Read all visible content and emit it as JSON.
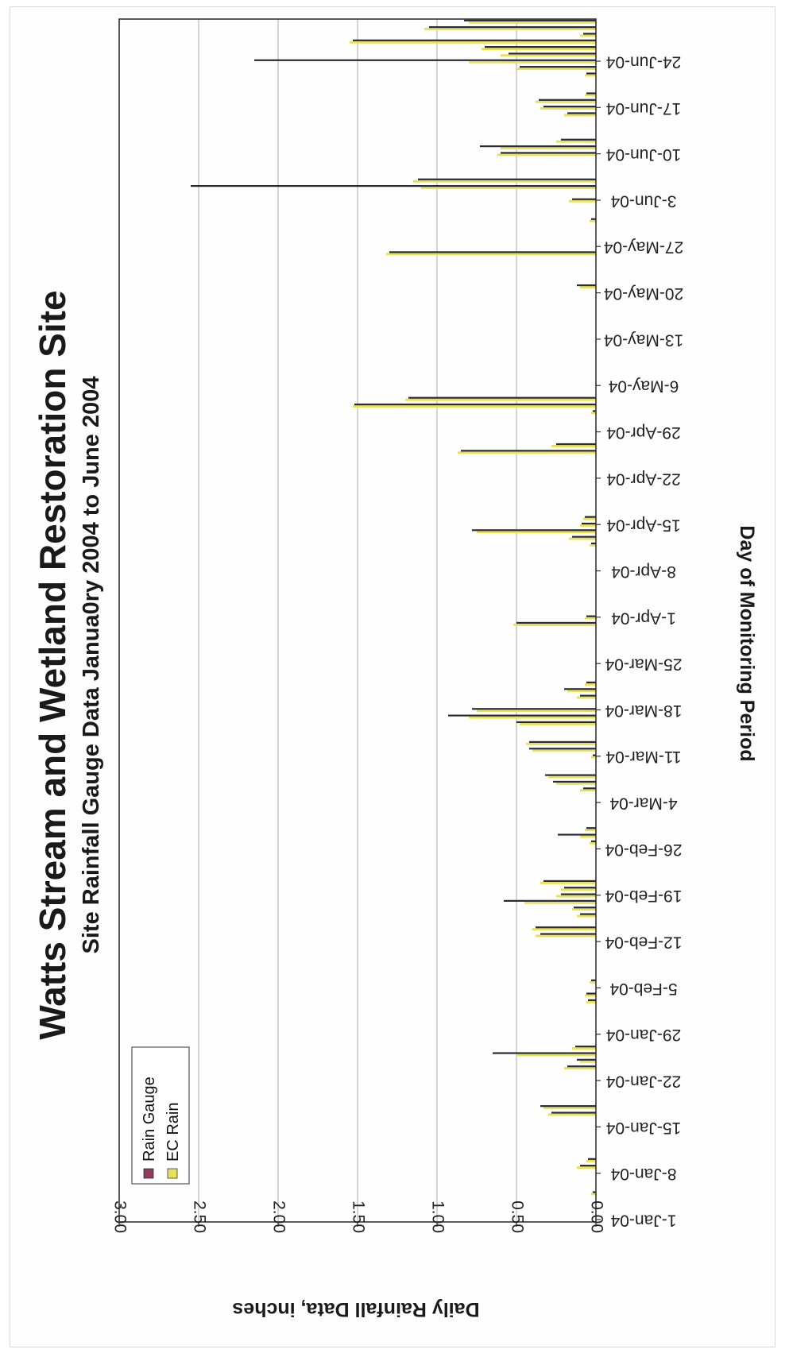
{
  "chart_data": {
    "type": "bar",
    "title": "Watts Stream and Wetland Restoration Site",
    "subtitle": "Site Rainfall Gauge Data Janua0ry 2004 to June 2004",
    "xlabel": "Day of Monitoring Period",
    "ylabel": "Daily Rainfall Data, inches",
    "ylim": [
      0,
      3.0
    ],
    "y_ticks": [
      "0.00",
      "0.50",
      "1.00",
      "1.50",
      "2.00",
      "2.50",
      "3.00"
    ],
    "x_tick_labels": [
      "1-Jan-04",
      "8-Jan-04",
      "15-Jan-04",
      "22-Jan-04",
      "29-Jan-04",
      "5-Feb-04",
      "12-Feb-04",
      "19-Feb-04",
      "26-Feb-04",
      "4-Mar-04",
      "11-Mar-04",
      "18-Mar-04",
      "25-Mar-04",
      "1-Apr-04",
      "8-Apr-04",
      "15-Apr-04",
      "22-Apr-04",
      "29-Apr-04",
      "6-May-04",
      "13-May-04",
      "20-May-04",
      "27-May-04",
      "3-Jun-04",
      "10-Jun-04",
      "17-Jun-04",
      "24-Jun-04"
    ],
    "x_start": "2004-01-01",
    "x_end": "2004-06-30",
    "grid": true,
    "legend_position": "top-left",
    "colors": {
      "rain_gauge": "#2b2b36",
      "ec_rain": "#e8e25a",
      "grid": "#b8b8b8"
    },
    "series": [
      {
        "name": "Rain Gauge",
        "points": [
          [
            "2004-01-05",
            0.02
          ],
          [
            "2004-01-09",
            0.1
          ],
          [
            "2004-01-10",
            0.05
          ],
          [
            "2004-01-17",
            0.28
          ],
          [
            "2004-01-18",
            0.35
          ],
          [
            "2004-01-24",
            0.18
          ],
          [
            "2004-01-25",
            0.12
          ],
          [
            "2004-01-26",
            0.65
          ],
          [
            "2004-01-27",
            0.13
          ],
          [
            "2004-02-03",
            0.05
          ],
          [
            "2004-02-04",
            0.06
          ],
          [
            "2004-02-06",
            0.03
          ],
          [
            "2004-02-13",
            0.35
          ],
          [
            "2004-02-14",
            0.38
          ],
          [
            "2004-02-16",
            0.1
          ],
          [
            "2004-02-17",
            0.14
          ],
          [
            "2004-02-18",
            0.58
          ],
          [
            "2004-02-19",
            0.22
          ],
          [
            "2004-02-20",
            0.2
          ],
          [
            "2004-02-21",
            0.33
          ],
          [
            "2004-02-27",
            0.03
          ],
          [
            "2004-02-28",
            0.24
          ],
          [
            "2004-02-29",
            0.06
          ],
          [
            "2004-03-06",
            0.08
          ],
          [
            "2004-03-07",
            0.27
          ],
          [
            "2004-03-08",
            0.32
          ],
          [
            "2004-03-11",
            0.02
          ],
          [
            "2004-03-12",
            0.42
          ],
          [
            "2004-03-13",
            0.42
          ],
          [
            "2004-03-16",
            0.5
          ],
          [
            "2004-03-17",
            0.93
          ],
          [
            "2004-03-18",
            0.78
          ],
          [
            "2004-03-20",
            0.1
          ],
          [
            "2004-03-21",
            0.2
          ],
          [
            "2004-03-22",
            0.06
          ],
          [
            "2004-03-31",
            0.5
          ],
          [
            "2004-04-01",
            0.06
          ],
          [
            "2004-04-12",
            0.03
          ],
          [
            "2004-04-13",
            0.15
          ],
          [
            "2004-04-14",
            0.78
          ],
          [
            "2004-04-15",
            0.09
          ],
          [
            "2004-04-16",
            0.07
          ],
          [
            "2004-04-26",
            0.85
          ],
          [
            "2004-04-27",
            0.25
          ],
          [
            "2004-05-02",
            0.02
          ],
          [
            "2004-05-03",
            1.52
          ],
          [
            "2004-05-04",
            1.18
          ],
          [
            "2004-05-21",
            0.12
          ],
          [
            "2004-05-26",
            1.3
          ],
          [
            "2004-05-31",
            0.03
          ],
          [
            "2004-06-03",
            0.15
          ],
          [
            "2004-06-05",
            2.55
          ],
          [
            "2004-06-06",
            1.12
          ],
          [
            "2004-06-10",
            0.6
          ],
          [
            "2004-06-11",
            0.73
          ],
          [
            "2004-06-12",
            0.22
          ],
          [
            "2004-06-16",
            0.18
          ],
          [
            "2004-06-17",
            0.33
          ],
          [
            "2004-06-18",
            0.36
          ],
          [
            "2004-06-19",
            0.06
          ],
          [
            "2004-06-22",
            0.06
          ],
          [
            "2004-06-23",
            0.48
          ],
          [
            "2004-06-24",
            2.15
          ],
          [
            "2004-06-25",
            0.55
          ],
          [
            "2004-06-26",
            0.7
          ],
          [
            "2004-06-27",
            1.53
          ],
          [
            "2004-06-28",
            0.08
          ],
          [
            "2004-06-29",
            1.05
          ],
          [
            "2004-06-30",
            0.83
          ]
        ]
      },
      {
        "name": "EC Rain",
        "points": [
          [
            "2004-01-05",
            0.03
          ],
          [
            "2004-01-09",
            0.12
          ],
          [
            "2004-01-10",
            0.06
          ],
          [
            "2004-01-17",
            0.3
          ],
          [
            "2004-01-18",
            0.33
          ],
          [
            "2004-01-24",
            0.2
          ],
          [
            "2004-01-25",
            0.1
          ],
          [
            "2004-01-26",
            0.5
          ],
          [
            "2004-01-27",
            0.15
          ],
          [
            "2004-02-03",
            0.06
          ],
          [
            "2004-02-04",
            0.07
          ],
          [
            "2004-02-06",
            0.04
          ],
          [
            "2004-02-13",
            0.38
          ],
          [
            "2004-02-14",
            0.4
          ],
          [
            "2004-02-16",
            0.12
          ],
          [
            "2004-02-17",
            0.15
          ],
          [
            "2004-02-18",
            0.45
          ],
          [
            "2004-02-19",
            0.25
          ],
          [
            "2004-02-20",
            0.22
          ],
          [
            "2004-02-21",
            0.35
          ],
          [
            "2004-02-27",
            0.04
          ],
          [
            "2004-02-28",
            0.1
          ],
          [
            "2004-02-29",
            0.07
          ],
          [
            "2004-03-06",
            0.1
          ],
          [
            "2004-03-07",
            0.25
          ],
          [
            "2004-03-08",
            0.3
          ],
          [
            "2004-03-11",
            0.03
          ],
          [
            "2004-03-12",
            0.4
          ],
          [
            "2004-03-13",
            0.44
          ],
          [
            "2004-03-16",
            0.48
          ],
          [
            "2004-03-17",
            0.8
          ],
          [
            "2004-03-18",
            0.75
          ],
          [
            "2004-03-20",
            0.12
          ],
          [
            "2004-03-21",
            0.18
          ],
          [
            "2004-03-22",
            0.07
          ],
          [
            "2004-03-31",
            0.52
          ],
          [
            "2004-04-01",
            0.07
          ],
          [
            "2004-04-12",
            0.04
          ],
          [
            "2004-04-13",
            0.17
          ],
          [
            "2004-04-14",
            0.75
          ],
          [
            "2004-04-15",
            0.1
          ],
          [
            "2004-04-16",
            0.08
          ],
          [
            "2004-04-26",
            0.87
          ],
          [
            "2004-04-27",
            0.28
          ],
          [
            "2004-05-02",
            0.03
          ],
          [
            "2004-05-03",
            1.53
          ],
          [
            "2004-05-04",
            1.2
          ],
          [
            "2004-05-21",
            0.1
          ],
          [
            "2004-05-26",
            1.32
          ],
          [
            "2004-05-31",
            0.04
          ],
          [
            "2004-06-03",
            0.17
          ],
          [
            "2004-06-05",
            1.1
          ],
          [
            "2004-06-06",
            1.15
          ],
          [
            "2004-06-10",
            0.62
          ],
          [
            "2004-06-11",
            0.6
          ],
          [
            "2004-06-12",
            0.25
          ],
          [
            "2004-06-16",
            0.2
          ],
          [
            "2004-06-17",
            0.35
          ],
          [
            "2004-06-18",
            0.38
          ],
          [
            "2004-06-19",
            0.07
          ],
          [
            "2004-06-22",
            0.07
          ],
          [
            "2004-06-23",
            0.5
          ],
          [
            "2004-06-24",
            0.8
          ],
          [
            "2004-06-25",
            0.6
          ],
          [
            "2004-06-26",
            0.72
          ],
          [
            "2004-06-27",
            1.55
          ],
          [
            "2004-06-28",
            0.1
          ],
          [
            "2004-06-29",
            1.08
          ],
          [
            "2004-06-30",
            0.8
          ]
        ]
      }
    ]
  }
}
